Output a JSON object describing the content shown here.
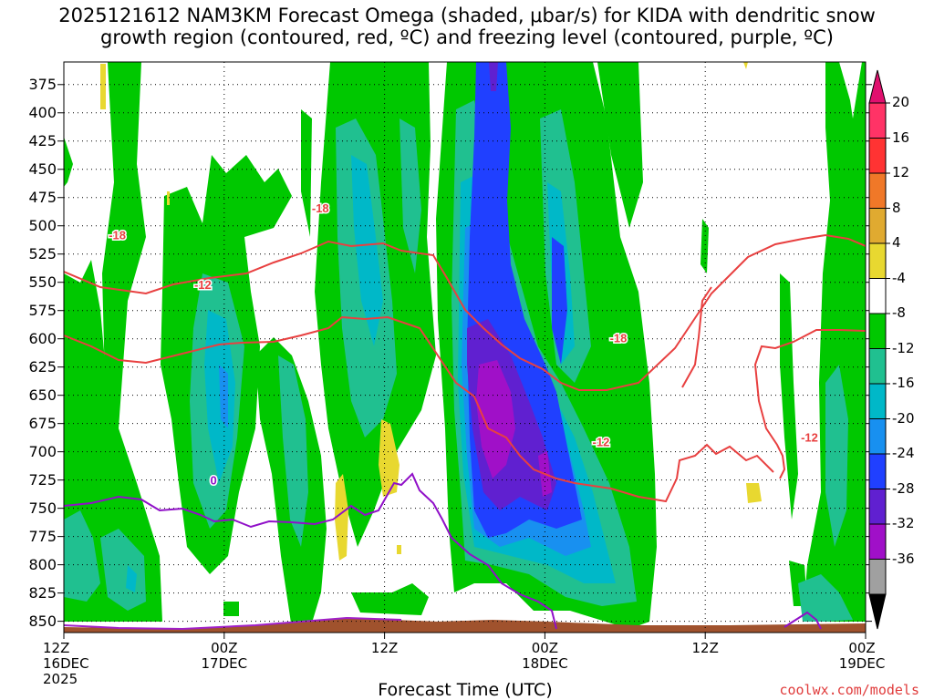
{
  "title": {
    "line1": "2025121612 NAM3KM Forecast Omega (shaded, μbar/s) for KIDA with dendritic snow",
    "line2": "growth region (contoured, red, ºC) and freezing level (contoured, purple, ºC)"
  },
  "credit": "coolwx.com/models",
  "chart_data": {
    "type": "heatmap",
    "xlabel": "Forecast Time (UTC)",
    "x_ticks": [
      {
        "hour": 0,
        "line1": "12Z",
        "line2": "16DEC",
        "line3": "2025"
      },
      {
        "hour": 12,
        "line1": "00Z",
        "line2": "17DEC"
      },
      {
        "hour": 24,
        "line1": "12Z"
      },
      {
        "hour": 36,
        "line1": "00Z",
        "line2": "18DEC"
      },
      {
        "hour": 48,
        "line1": "12Z"
      },
      {
        "hour": 60,
        "line1": "00Z",
        "line2": "19DEC"
      }
    ],
    "y_ticks": [
      375,
      400,
      425,
      450,
      475,
      500,
      525,
      550,
      575,
      600,
      625,
      650,
      675,
      700,
      725,
      750,
      775,
      800,
      825,
      850
    ],
    "y_range_hpa": [
      355,
      860
    ],
    "x_range_hours": [
      0,
      60
    ],
    "grid": true,
    "colorbar": {
      "ticks": [
        "20",
        "16",
        "12",
        "8",
        "4",
        "-4",
        "-8",
        "-12",
        "-16",
        "-20",
        "-24",
        "-28",
        "-32",
        "-36"
      ],
      "colors": [
        "#ff3366",
        "#ff3333",
        "#f07828",
        "#e0aa30",
        "#e8d830",
        "#ffffff",
        "#00c800",
        "#20c090",
        "#00b8c8",
        "#1890f0",
        "#2040ff",
        "#6020d0",
        "#a010c8",
        "#a0a0a0"
      ]
    },
    "contour_labels": [
      {
        "text": "-18",
        "color": "#e84040",
        "hour": 4.0,
        "p": 508
      },
      {
        "text": "-18",
        "color": "#e84040",
        "hour": 19.2,
        "p": 484
      },
      {
        "text": "-18",
        "color": "#e84040",
        "hour": 41.5,
        "p": 599
      },
      {
        "text": "-12",
        "color": "#e84040",
        "hour": 10.4,
        "p": 552
      },
      {
        "text": "-12",
        "color": "#e84040",
        "hour": 40.2,
        "p": 691
      },
      {
        "text": "-12",
        "color": "#e84040",
        "hour": 55.8,
        "p": 687
      },
      {
        "text": "0",
        "color": "#9010c8",
        "hour": 11.2,
        "p": 725
      }
    ]
  }
}
